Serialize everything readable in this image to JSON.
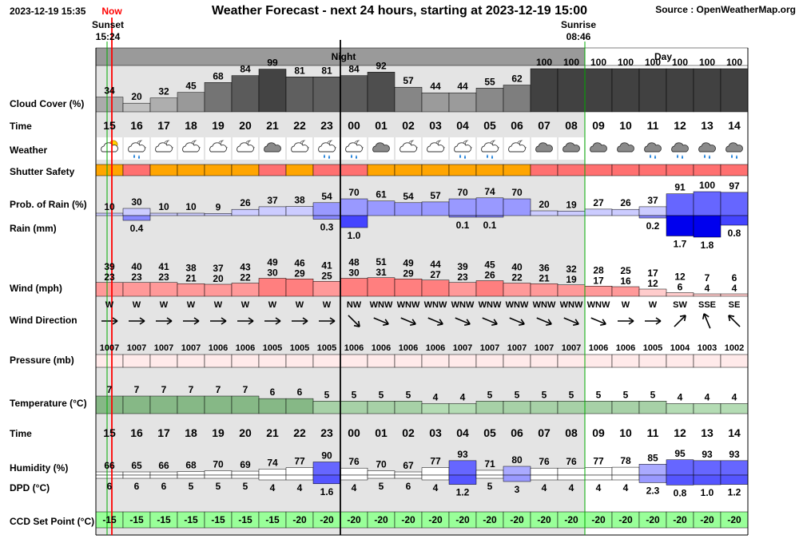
{
  "header": {
    "datetime": "2023-12-19 15:35",
    "now_label": "Now",
    "title": "Weather Forecast - next 24 hours, starting at 2023-12-19 15:00",
    "source": "Source : OpenWeatherMap.org",
    "sunset_label": "Sunset",
    "sunset_time": "15:24",
    "sunrise_label": "Sunrise",
    "sunrise_time": "08:46",
    "night_label": "Night",
    "day_label": "Day"
  },
  "row_labels": {
    "cloud": "Cloud Cover (%)",
    "time": "Time",
    "weather": "Weather",
    "shutter": "Shutter Safety",
    "rain_prob": "Prob. of Rain (%)",
    "rain_mm": "Rain (mm)",
    "wind": "Wind (mph)",
    "wind_dir": "Wind Direction",
    "pressure": "Pressure (mb)",
    "temperature": "Temperature (°C)",
    "time2": "Time",
    "humidity": "Humidity (%)",
    "dpd": "DPD (°C)",
    "ccd": "CCD Set Point (°C)"
  },
  "colors": {
    "night_bg": "#e4e4e4",
    "night_header": "#9a9a9a",
    "shutter_orange": "#ffa500",
    "shutter_red": "#ff7070",
    "rain_light": "#ccccff",
    "rain_dark": "#0000ee",
    "wind_fill": "#ff9999",
    "temp_green": "#86b886",
    "ccd_green": "#99ff99",
    "now_line": "#ff0000"
  },
  "chart_data": {
    "type": "table",
    "title": "Weather Forecast - next 24 hours, starting at 2023-12-19 15:00",
    "hours": [
      "15",
      "16",
      "17",
      "18",
      "19",
      "20",
      "21",
      "22",
      "23",
      "00",
      "01",
      "02",
      "03",
      "04",
      "05",
      "06",
      "07",
      "08",
      "09",
      "10",
      "11",
      "12",
      "13",
      "14"
    ],
    "is_night": [
      true,
      true,
      true,
      true,
      true,
      true,
      true,
      true,
      true,
      true,
      true,
      true,
      true,
      true,
      true,
      true,
      true,
      true,
      false,
      false,
      false,
      false,
      false,
      false
    ],
    "cloud_cover": [
      34,
      20,
      32,
      45,
      68,
      84,
      99,
      81,
      81,
      84,
      92,
      57,
      44,
      44,
      55,
      62,
      100,
      100,
      100,
      100,
      100,
      100,
      100,
      100
    ],
    "weather_icons": [
      "partly-cloudy-day-icon",
      "cloud-moon-rain-icon",
      "cloud-moon-icon",
      "cloud-moon-icon",
      "cloud-moon-icon",
      "cloud-moon-icon",
      "cloud-icon",
      "cloud-moon-icon",
      "cloud-moon-rain-icon",
      "cloud-moon-rain-icon",
      "cloud-icon",
      "cloud-moon-icon",
      "cloud-moon-icon",
      "cloud-moon-rain-icon",
      "cloud-moon-rain-icon",
      "cloud-moon-icon",
      "cloud-icon",
      "cloud-icon",
      "cloud-icon",
      "cloud-icon",
      "cloud-rain-icon",
      "cloud-rain-icon",
      "cloud-rain-icon",
      "cloud-rain-icon"
    ],
    "shutter_safety": [
      "orange",
      "red",
      "orange",
      "orange",
      "orange",
      "orange",
      "red",
      "orange",
      "red",
      "red",
      "orange",
      "orange",
      "orange",
      "orange",
      "orange",
      "orange",
      "red",
      "red",
      "red",
      "red",
      "red",
      "red",
      "red",
      "red"
    ],
    "rain_probability": [
      10,
      30,
      10,
      10,
      9,
      26,
      37,
      38,
      54,
      70,
      61,
      54,
      57,
      70,
      74,
      70,
      20,
      19,
      27,
      26,
      37,
      91,
      100,
      97
    ],
    "rain_mm": [
      null,
      0.4,
      null,
      null,
      null,
      null,
      null,
      null,
      0.3,
      1.0,
      null,
      null,
      null,
      0.1,
      0.1,
      null,
      null,
      null,
      null,
      null,
      0.2,
      1.7,
      1.8,
      0.8
    ],
    "rain_mm_labels": [
      "",
      "0.4",
      "",
      "",
      "",
      "",
      "",
      "",
      "0.3",
      "1.0",
      "",
      "",
      "",
      "0.1",
      "0.1",
      "",
      "",
      "",
      "",
      "",
      "0.2",
      "1.7",
      "1.8",
      "0.8"
    ],
    "wind_gust": [
      39,
      40,
      41,
      38,
      37,
      43,
      49,
      46,
      41,
      48,
      51,
      49,
      44,
      39,
      45,
      40,
      36,
      32,
      28,
      25,
      17,
      12,
      7,
      6
    ],
    "wind_speed": [
      23,
      23,
      23,
      21,
      20,
      22,
      30,
      29,
      25,
      30,
      31,
      29,
      27,
      23,
      26,
      22,
      21,
      19,
      17,
      16,
      12,
      6,
      4,
      4
    ],
    "wind_direction": [
      "W",
      "W",
      "W",
      "W",
      "W",
      "W",
      "W",
      "W",
      "W",
      "NW",
      "WNW",
      "WNW",
      "WNW",
      "WNW",
      "WNW",
      "WNW",
      "WNW",
      "WNW",
      "WNW",
      "W",
      "W",
      "SW",
      "SSE",
      "SE"
    ],
    "wind_to_deg": [
      90,
      90,
      90,
      90,
      90,
      90,
      90,
      90,
      90,
      135,
      112.5,
      112.5,
      112.5,
      112.5,
      112.5,
      112.5,
      112.5,
      112.5,
      112.5,
      90,
      90,
      45,
      -22.5,
      -45
    ],
    "pressure": [
      1007,
      1007,
      1007,
      1007,
      1006,
      1006,
      1005,
      1005,
      1005,
      1006,
      1006,
      1006,
      1006,
      1007,
      1007,
      1007,
      1007,
      1007,
      1006,
      1006,
      1005,
      1004,
      1003,
      1002
    ],
    "temperature": [
      7,
      7,
      7,
      7,
      7,
      7,
      6,
      6,
      5,
      5,
      5,
      5,
      4,
      4,
      5,
      5,
      5,
      5,
      5,
      5,
      5,
      4,
      4,
      4
    ],
    "humidity": [
      66,
      65,
      66,
      68,
      70,
      69,
      74,
      77,
      90,
      76,
      70,
      67,
      77,
      93,
      71,
      80,
      76,
      76,
      77,
      78,
      85,
      95,
      93,
      93
    ],
    "dpd": [
      6,
      6,
      6,
      5,
      5,
      5,
      4,
      4,
      1.6,
      4,
      5,
      6,
      4,
      1.2,
      5,
      3,
      4,
      4,
      4,
      4,
      2.3,
      0.8,
      1.0,
      1.2
    ],
    "dpd_labels": [
      "6",
      "6",
      "6",
      "5",
      "5",
      "5",
      "4",
      "4",
      "1.6",
      "4",
      "5",
      "6",
      "4",
      "1.2",
      "5",
      "3",
      "4",
      "4",
      "4",
      "4",
      "2.3",
      "0.8",
      "1.0",
      "1.2"
    ],
    "ccd_set_point": [
      -15,
      -15,
      -15,
      -15,
      -15,
      -15,
      -15,
      -20,
      -20,
      -20,
      -20,
      -20,
      -20,
      -20,
      -20,
      -20,
      -20,
      -20,
      -20,
      -20,
      -20,
      -20,
      -20,
      -20
    ]
  }
}
